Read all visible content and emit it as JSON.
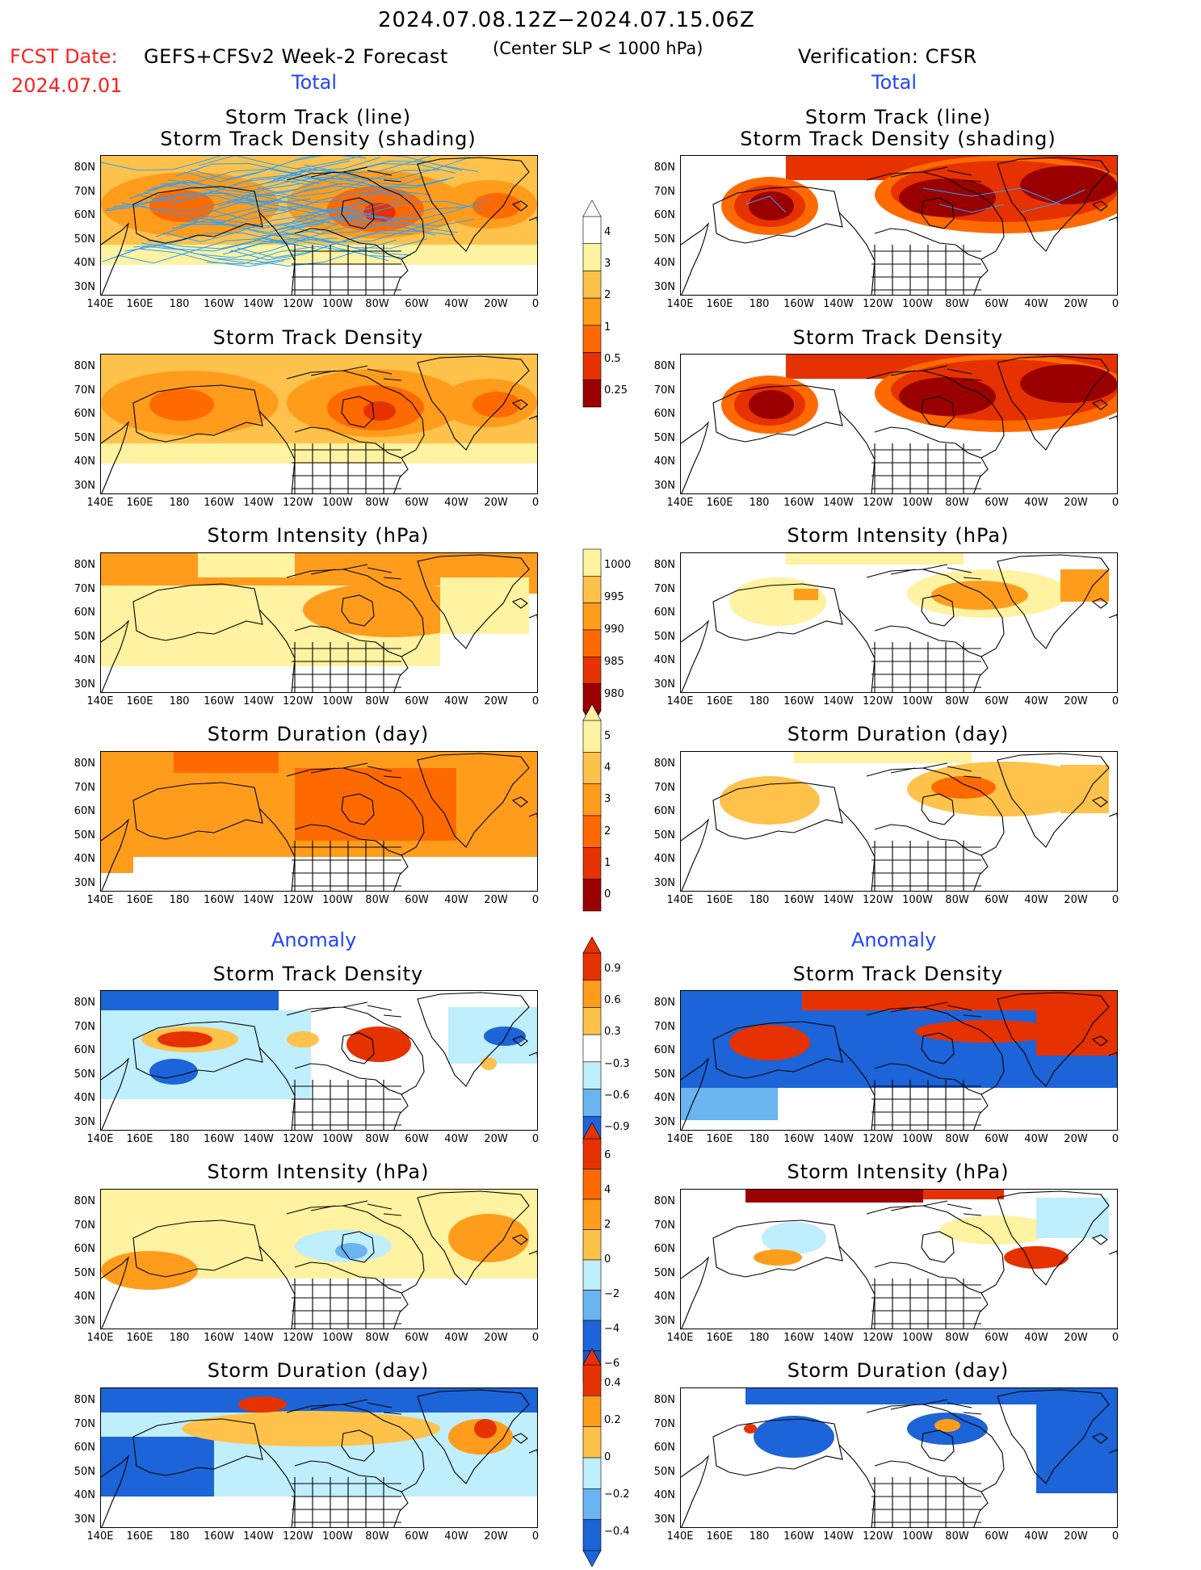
{
  "header": {
    "period": "2024.07.08.12Z−2024.07.15.06Z",
    "fcst_label": "FCST Date:",
    "fcst_date": "2024.07.01",
    "forecast_name": "GEFS+CFSv2 Week-2 Forecast",
    "criterion": "(Center SLP < 1000 hPa)",
    "verification": "Verification: CFSR"
  },
  "sections": {
    "total_left": "Total",
    "total_right": "Total",
    "anomaly_left": "Anomaly",
    "anomaly_right": "Anomaly"
  },
  "panel_titles": {
    "p1": "Storm Track (line)",
    "p1b": "Storm Track Density (shading)",
    "p2": "Storm Track Density",
    "p3": "Storm Intensity (hPa)",
    "p4": "Storm Duration (day)",
    "p5": "Storm Track Density",
    "p6": "Storm Intensity (hPa)",
    "p7": "Storm Duration (day)"
  },
  "axes": {
    "lat_ticks": [
      "80N",
      "70N",
      "60N",
      "50N",
      "40N",
      "30N"
    ],
    "lon_ticks": [
      "140E",
      "160E",
      "180",
      "160W",
      "140W",
      "120W",
      "100W",
      "80W",
      "60W",
      "40W",
      "20W",
      "0"
    ]
  },
  "colorbars": {
    "density": [
      "4",
      "3",
      "2",
      "1",
      "0.5",
      "0.25"
    ],
    "intensity": [
      "1000",
      "995",
      "990",
      "985",
      "980"
    ],
    "duration": [
      "5",
      "4",
      "3",
      "2",
      "1",
      "0"
    ],
    "density_anom": [
      "0.9",
      "0.6",
      "0.3",
      "−0.3",
      "−0.6",
      "−0.9"
    ],
    "intensity_anom": [
      "6",
      "4",
      "2",
      "0",
      "−2",
      "−4",
      "−6"
    ],
    "duration_anom": [
      "0.4",
      "0.2",
      "0",
      "−0.2",
      "−0.4"
    ]
  },
  "colors": {
    "dark_red": "#9b0000",
    "red": "#e63200",
    "orange_red": "#ff6a00",
    "orange": "#ff9c1c",
    "light_orange": "#ffc24a",
    "pale_yellow": "#fff2a0",
    "light_blue": "#bfeefc",
    "mid_blue": "#6ab4f0",
    "blue": "#1c64d8",
    "track_line": "#2aa0ff"
  }
}
